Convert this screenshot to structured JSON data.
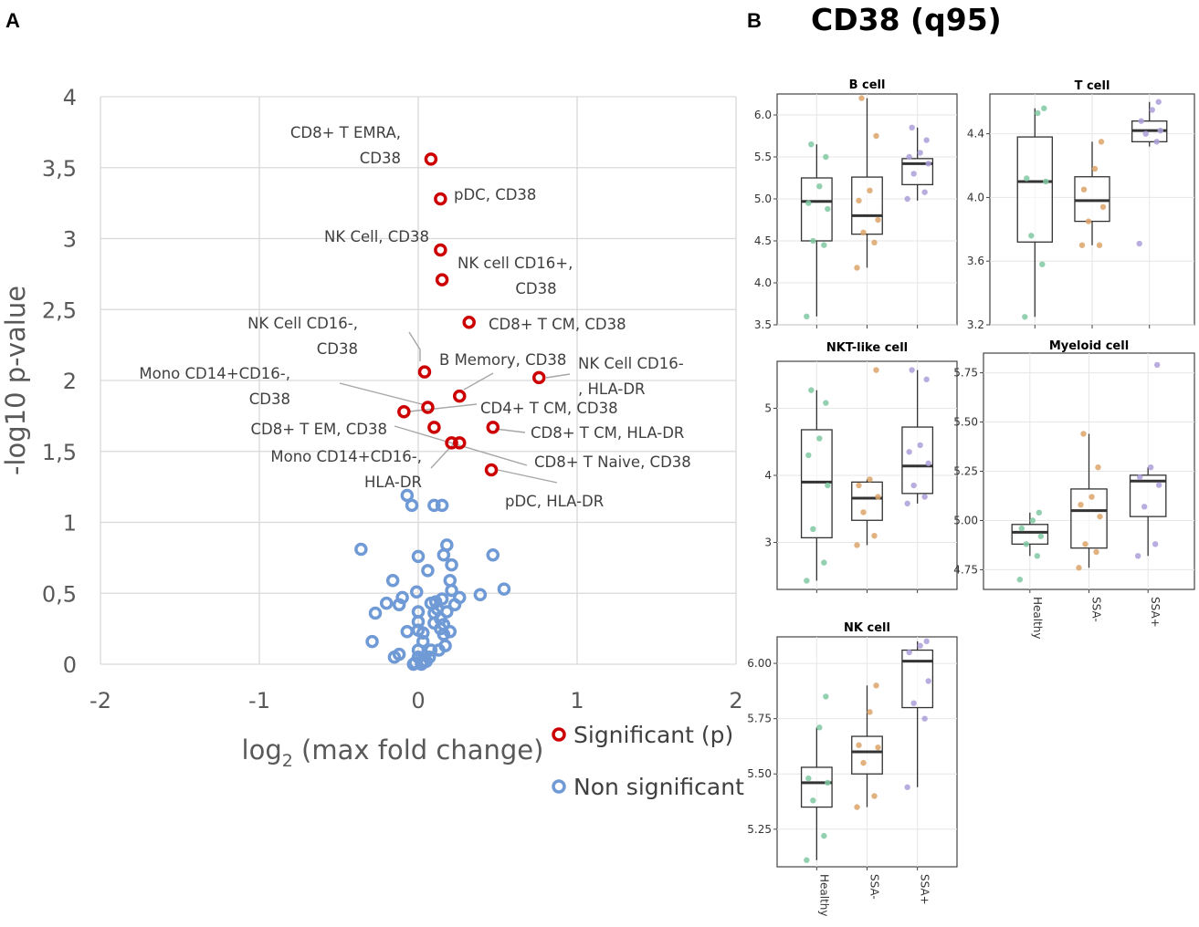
{
  "panel_a": {
    "letter": "A"
  },
  "panel_b": {
    "letter": "B",
    "title": "CD38 (q95)"
  },
  "colors": {
    "significant": "#cc0000",
    "non_significant": "#6f9ad6",
    "grid": "#d9d9d9",
    "axis_text": "#595959",
    "healthy": "#7fc8a2",
    "ssa_neg": "#dca46a",
    "ssa_pos": "#ab9fd8"
  },
  "chart_data": [
    {
      "type": "scatter",
      "name": "volcano",
      "xlabel_main": "log",
      "xlabel_sub": "2",
      "xlabel_rest": " (max fold change)",
      "ylabel": "-log10 p-value",
      "xlim": [
        -2,
        2
      ],
      "ylim": [
        0,
        4
      ],
      "x_ticks": [
        {
          "value": -2,
          "label": "-2"
        },
        {
          "value": -1,
          "label": "-1"
        },
        {
          "value": 0,
          "label": "0"
        },
        {
          "value": 1,
          "label": "1"
        },
        {
          "value": 2,
          "label": "2"
        }
      ],
      "y_ticks": [
        {
          "value": 0,
          "label": "0"
        },
        {
          "value": 0.5,
          "label": "0,5"
        },
        {
          "value": 1,
          "label": "1"
        },
        {
          "value": 1.5,
          "label": "1,5"
        },
        {
          "value": 2,
          "label": "2"
        },
        {
          "value": 2.5,
          "label": "2,5"
        },
        {
          "value": 3,
          "label": "3"
        },
        {
          "value": 3.5,
          "label": "3,5"
        },
        {
          "value": 4,
          "label": "4"
        }
      ],
      "legend": [
        {
          "key": "significant",
          "label": "Significant (p)"
        },
        {
          "key": "non_significant",
          "label": "Non significant"
        }
      ],
      "significant": [
        {
          "x": 0.08,
          "y": 3.56,
          "label": [
            "CD8+ T EMRA,",
            "CD38"
          ]
        },
        {
          "x": 0.14,
          "y": 3.28,
          "label": [
            "pDC, CD38"
          ]
        },
        {
          "x": 0.14,
          "y": 2.92,
          "label": [
            "NK Cell, CD38"
          ]
        },
        {
          "x": 0.15,
          "y": 2.71,
          "label": [
            "NK cell CD16+,",
            "CD38"
          ]
        },
        {
          "x": 0.32,
          "y": 2.41,
          "label": [
            "CD8+ T CM, CD38"
          ]
        },
        {
          "x": 0.04,
          "y": 2.06,
          "label": [
            "NK Cell CD16-,",
            "CD38"
          ]
        },
        {
          "x": 0.76,
          "y": 2.02,
          "label": [
            "NK Cell CD16-",
            ", HLA-DR"
          ]
        },
        {
          "x": 0.26,
          "y": 1.89,
          "label": [
            "B Memory, CD38"
          ]
        },
        {
          "x": 0.06,
          "y": 1.81,
          "label": [
            "Mono CD14+CD16-,",
            "CD38"
          ]
        },
        {
          "x": -0.09,
          "y": 1.78,
          "label": [
            "CD4+ T CM, CD38"
          ]
        },
        {
          "x": 0.1,
          "y": 1.67,
          "label": [
            "CD8+ T EM, CD38"
          ]
        },
        {
          "x": 0.47,
          "y": 1.67,
          "label": [
            "CD8+ T CM, HLA-DR"
          ]
        },
        {
          "x": 0.21,
          "y": 1.56,
          "label": [
            "Mono CD14+CD16-,",
            "HLA-DR"
          ]
        },
        {
          "x": 0.26,
          "y": 1.56,
          "label": [
            "CD8+ T Naive, CD38"
          ]
        },
        {
          "x": 0.46,
          "y": 1.37,
          "label": [
            "pDC, HLA-DR"
          ]
        }
      ],
      "non_significant": [
        [
          -0.07,
          1.19
        ],
        [
          -0.04,
          1.12
        ],
        [
          0.1,
          1.12
        ],
        [
          0.15,
          1.12
        ],
        [
          -0.36,
          0.81
        ],
        [
          0.18,
          0.84
        ],
        [
          0.0,
          0.76
        ],
        [
          0.16,
          0.77
        ],
        [
          0.47,
          0.77
        ],
        [
          0.21,
          0.7
        ],
        [
          0.06,
          0.66
        ],
        [
          -0.16,
          0.59
        ],
        [
          0.2,
          0.59
        ],
        [
          0.54,
          0.53
        ],
        [
          -0.01,
          0.51
        ],
        [
          0.21,
          0.52
        ],
        [
          0.39,
          0.49
        ],
        [
          -0.1,
          0.47
        ],
        [
          0.26,
          0.47
        ],
        [
          0.08,
          0.43
        ],
        [
          0.11,
          0.44
        ],
        [
          0.15,
          0.46
        ],
        [
          -0.2,
          0.43
        ],
        [
          -0.12,
          0.42
        ],
        [
          0.12,
          0.39
        ],
        [
          0.23,
          0.42
        ],
        [
          -0.27,
          0.36
        ],
        [
          0.0,
          0.37
        ],
        [
          0.1,
          0.36
        ],
        [
          0.18,
          0.37
        ],
        [
          0.14,
          0.32
        ],
        [
          0.1,
          0.29
        ],
        [
          0.16,
          0.28
        ],
        [
          0.0,
          0.3
        ],
        [
          0.14,
          0.25
        ],
        [
          -0.07,
          0.23
        ],
        [
          0.0,
          0.24
        ],
        [
          0.2,
          0.23
        ],
        [
          0.03,
          0.22
        ],
        [
          0.16,
          0.21
        ],
        [
          -0.29,
          0.16
        ],
        [
          0.03,
          0.16
        ],
        [
          0.17,
          0.13
        ],
        [
          0.08,
          0.1
        ],
        [
          0.13,
          0.1
        ],
        [
          -0.12,
          0.07
        ],
        [
          -0.15,
          0.05
        ],
        [
          0.0,
          0.1
        ],
        [
          0.0,
          0.05
        ],
        [
          0.07,
          0.05
        ],
        [
          0.03,
          0.02
        ],
        [
          -0.02,
          0.01
        ],
        [
          0.05,
          0.02
        ],
        [
          0.02,
          0.0
        ],
        [
          -0.03,
          0.0
        ]
      ]
    },
    {
      "type": "box",
      "title": "B cell",
      "ylim": [
        3.5,
        6.25
      ],
      "ticks": [
        "3.5",
        "4.0",
        "4.5",
        "5.0",
        "5.5",
        "6.0"
      ],
      "groups": [
        {
          "name": "Healthy",
          "q1": 4.5,
          "median": 4.97,
          "q3": 5.25,
          "whisker_low": 3.6,
          "whisker_high": 5.65,
          "points": [
            3.6,
            4.45,
            4.5,
            4.88,
            4.95,
            5.15,
            5.5,
            5.65
          ]
        },
        {
          "name": "SSA-",
          "q1": 4.58,
          "median": 4.8,
          "q3": 5.26,
          "whisker_low": 4.18,
          "whisker_high": 6.2,
          "points": [
            4.18,
            4.48,
            4.6,
            4.75,
            4.98,
            5.1,
            5.75,
            6.2
          ]
        },
        {
          "name": "SSA+",
          "q1": 5.17,
          "median": 5.42,
          "q3": 5.48,
          "whisker_low": 4.98,
          "whisker_high": 5.85,
          "points": [
            5.0,
            5.08,
            5.3,
            5.42,
            5.5,
            5.55,
            5.7,
            5.85
          ]
        }
      ]
    },
    {
      "type": "box",
      "title": "T cell",
      "ylim": [
        3.2,
        4.65
      ],
      "ticks": [
        "3.2",
        "3.6",
        "4.0",
        "4.4"
      ],
      "groups": [
        {
          "name": "Healthy",
          "q1": 3.72,
          "median": 4.1,
          "q3": 4.38,
          "whisker_low": 3.25,
          "whisker_high": 4.56,
          "points": [
            3.25,
            3.58,
            3.76,
            4.1,
            4.12,
            4.53,
            4.56
          ]
        },
        {
          "name": "SSA-",
          "q1": 3.85,
          "median": 3.98,
          "q3": 4.13,
          "whisker_low": 3.7,
          "whisker_high": 4.35,
          "points": [
            3.7,
            3.7,
            3.85,
            3.94,
            4.05,
            4.18,
            4.35
          ]
        },
        {
          "name": "SSA+",
          "q1": 4.35,
          "median": 4.42,
          "q3": 4.48,
          "whisker_low": 4.32,
          "whisker_high": 4.6,
          "points": [
            3.71,
            4.35,
            4.4,
            4.42,
            4.48,
            4.55,
            4.6
          ]
        }
      ]
    },
    {
      "type": "box",
      "title": "NKT-like cell",
      "ylim": [
        2.3,
        5.7
      ],
      "ticks": [
        "3",
        "4",
        "5"
      ],
      "groups": [
        {
          "name": "Healthy",
          "q1": 3.07,
          "median": 3.9,
          "q3": 4.68,
          "whisker_low": 2.43,
          "whisker_high": 5.27,
          "points": [
            2.43,
            2.7,
            3.2,
            3.85,
            4.3,
            4.55,
            5.08,
            5.27
          ]
        },
        {
          "name": "SSA-",
          "q1": 3.33,
          "median": 3.66,
          "q3": 3.9,
          "whisker_low": 2.96,
          "whisker_high": 3.94,
          "points": [
            2.96,
            3.1,
            3.45,
            3.68,
            3.85,
            3.94,
            5.57
          ]
        },
        {
          "name": "SSA+",
          "q1": 3.73,
          "median": 4.14,
          "q3": 4.72,
          "whisker_low": 3.58,
          "whisker_high": 5.57,
          "points": [
            3.58,
            3.68,
            3.85,
            4.18,
            4.35,
            4.45,
            5.43,
            5.57
          ]
        }
      ]
    },
    {
      "type": "box",
      "title": "Myeloid cell",
      "ylim": [
        4.65,
        5.85
      ],
      "ticks": [
        "4.75",
        "5.00",
        "5.25",
        "5.50",
        "5.75"
      ],
      "categories": [
        "Healthy",
        "SSA-",
        "SSA+"
      ],
      "groups": [
        {
          "name": "Healthy",
          "q1": 4.88,
          "median": 4.94,
          "q3": 4.98,
          "whisker_low": 4.82,
          "whisker_high": 5.04,
          "points": [
            4.7,
            4.82,
            4.88,
            4.92,
            4.96,
            5.0,
            5.04
          ]
        },
        {
          "name": "SSA-",
          "q1": 4.86,
          "median": 5.05,
          "q3": 5.16,
          "whisker_low": 4.76,
          "whisker_high": 5.44,
          "points": [
            4.76,
            4.84,
            4.88,
            5.02,
            5.08,
            5.12,
            5.27,
            5.44
          ]
        },
        {
          "name": "SSA+",
          "q1": 5.02,
          "median": 5.2,
          "q3": 5.23,
          "whisker_low": 4.82,
          "whisker_high": 5.27,
          "points": [
            4.82,
            4.88,
            5.07,
            5.18,
            5.22,
            5.27,
            5.79
          ]
        }
      ]
    },
    {
      "type": "box",
      "title": "NK cell",
      "ylim": [
        5.08,
        6.12
      ],
      "ticks": [
        "5.25",
        "5.50",
        "5.75",
        "6.00"
      ],
      "categories": [
        "Healthy",
        "SSA-",
        "SSA+"
      ],
      "groups": [
        {
          "name": "Healthy",
          "q1": 5.35,
          "median": 5.46,
          "q3": 5.53,
          "whisker_low": 5.11,
          "whisker_high": 5.71,
          "points": [
            5.11,
            5.22,
            5.38,
            5.46,
            5.48,
            5.71,
            5.85
          ]
        },
        {
          "name": "SSA-",
          "q1": 5.5,
          "median": 5.6,
          "q3": 5.67,
          "whisker_low": 5.35,
          "whisker_high": 5.9,
          "points": [
            5.35,
            5.4,
            5.55,
            5.62,
            5.63,
            5.78,
            5.9
          ]
        },
        {
          "name": "SSA+",
          "q1": 5.8,
          "median": 6.01,
          "q3": 6.06,
          "whisker_low": 5.44,
          "whisker_high": 6.1,
          "points": [
            5.44,
            5.75,
            5.82,
            5.92,
            6.05,
            6.08,
            6.1
          ]
        }
      ]
    }
  ]
}
